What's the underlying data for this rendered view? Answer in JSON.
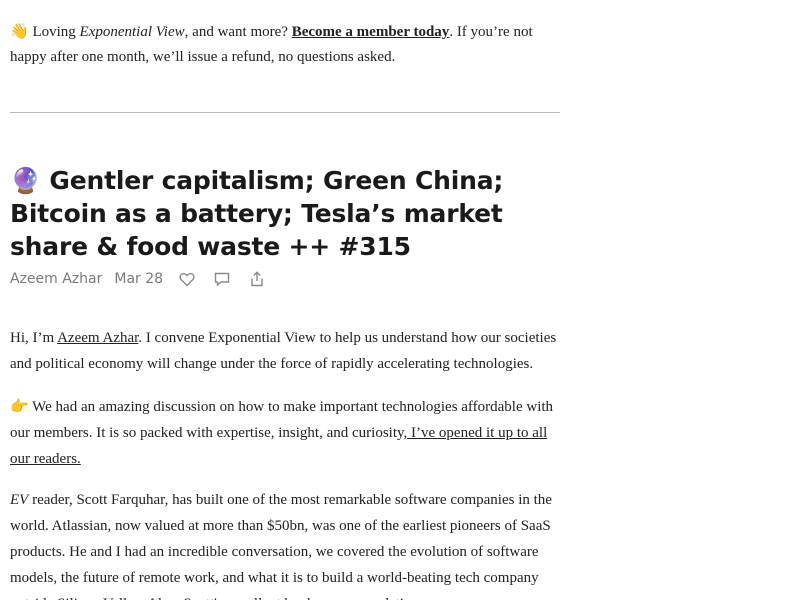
{
  "promo": {
    "emoji": "👋",
    "text_before": " Loving ",
    "publication_italic": "Exponential View",
    "text_mid": ", and want more? ",
    "cta_link": "Become a member today",
    "text_after": ". If you’re not happy after one month, we’ll issue a refund, no questions asked."
  },
  "post": {
    "title": "🔮 Gentler capitalism; Green China; Bitcoin as a battery; Tesla’s market share & food waste ++ #315",
    "author": "Azeem Azhar",
    "date": "Mar 28",
    "icons": [
      "heart-icon",
      "comment-icon",
      "share-icon"
    ]
  },
  "paragraphs": {
    "p1": {
      "before": "Hi, I’m ",
      "link": "Azeem Azhar",
      "after": ". I convene Exponential View to help us understand how our societies and political economy will change under the force of rapidly accelerating technologies."
    },
    "p2": {
      "emoji": "👉",
      "before": " We had an amazing discussion on how to make important technologies affordable with our members. It is so packed with expertise, insight, and curiosity,",
      "link": " I’ve opened it up to all our readers."
    },
    "p3": {
      "italic": "EV",
      "text": " reader, Scott Farquhar, has built one of the most remarkable software companies in the world. Atlassian, now valued at more than $50bn, was one of the earliest pioneers of SaaS products. He and I had an incredible conversation, we covered the evolution of software models, the future of remote work, and what it is to build a world-beating tech company outside Silicon Valley. Also: Scott's excellent book recommendations."
    }
  }
}
